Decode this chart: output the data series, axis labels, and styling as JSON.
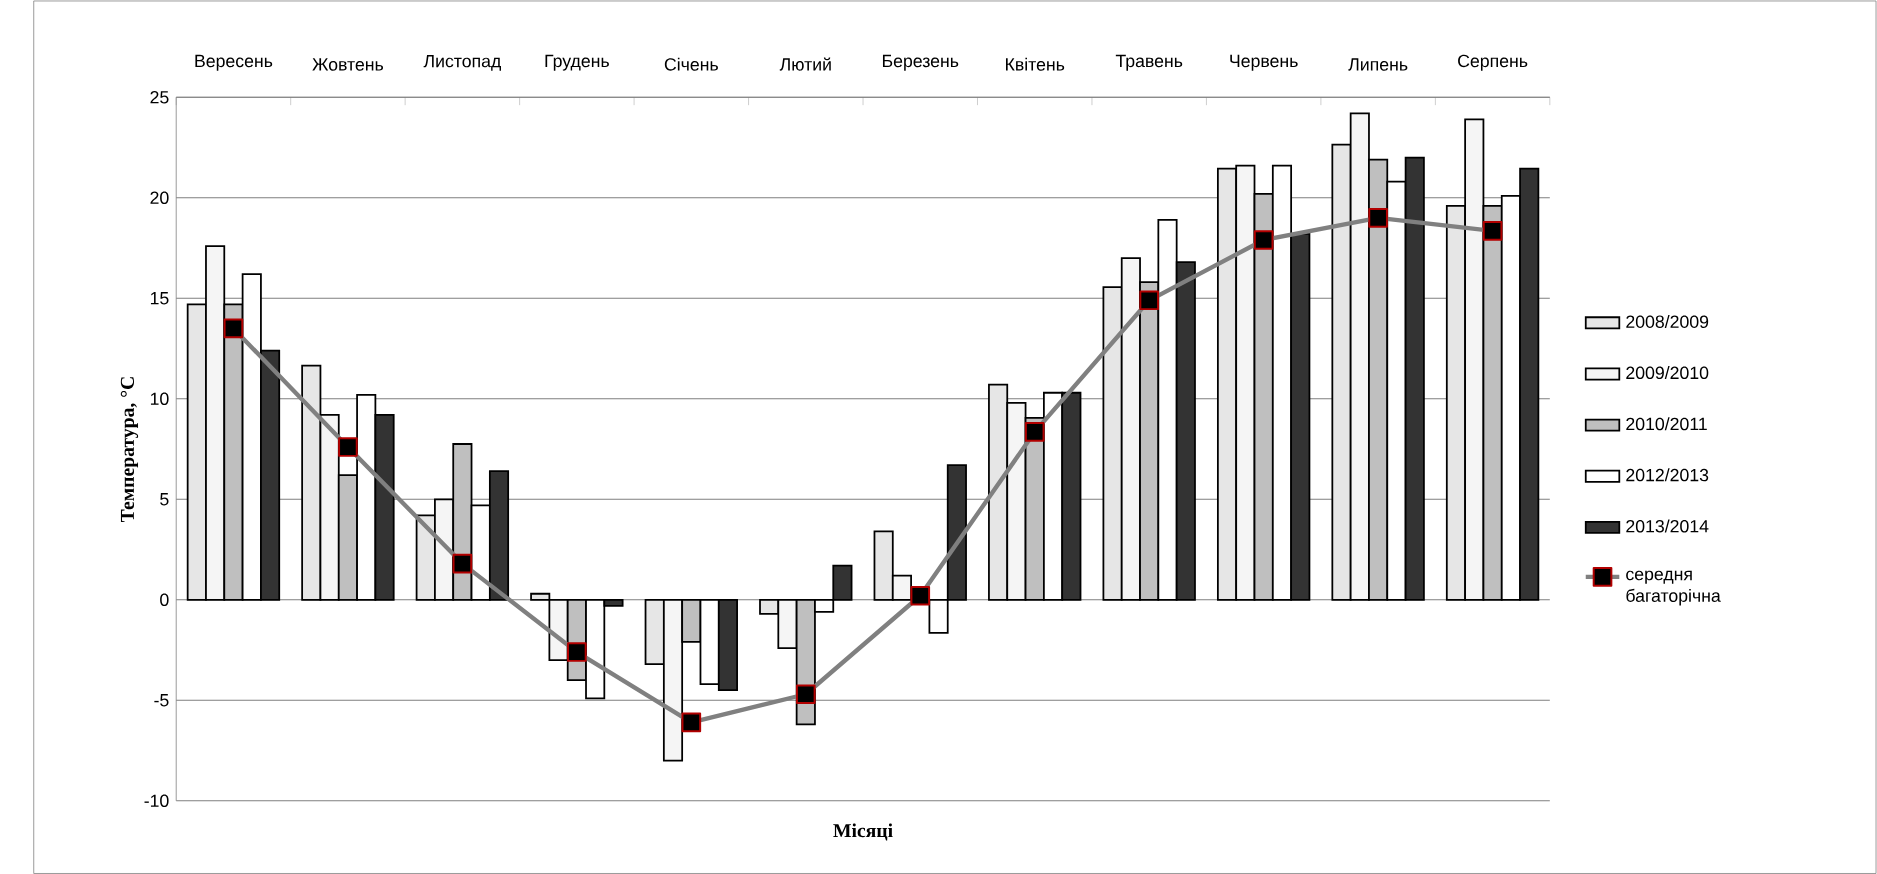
{
  "chart_data": {
    "type": "bar",
    "xlabel": "Місяці",
    "ylabel": "Температура, °C",
    "categories": [
      "Вересень",
      "Жовтень",
      "Листопад",
      "Грудень",
      "Січень",
      "Лютий",
      "Березень",
      "Квітень",
      "Травень",
      "Червень",
      "Липень",
      "Серпень"
    ],
    "ylim": [
      -10,
      25
    ],
    "yticks": [
      -10,
      -5,
      0,
      5,
      10,
      15,
      20,
      25
    ],
    "grid": "y",
    "legend": "right",
    "series": [
      {
        "name": "2008/2009",
        "color": "#e6e6e6",
        "values": [
          14.7,
          11.65,
          4.2,
          0.3,
          -3.2,
          -0.7,
          3.4,
          10.7,
          15.55,
          21.45,
          22.65,
          19.6
        ]
      },
      {
        "name": "2009/2010",
        "color": "#f5f5f5",
        "values": [
          17.6,
          9.2,
          5.0,
          -3.0,
          -8.0,
          -2.4,
          1.2,
          9.8,
          17.0,
          21.6,
          24.2,
          23.9
        ]
      },
      {
        "name": "2010/2011",
        "color": "#bfbfbf",
        "values": [
          14.7,
          6.2,
          7.75,
          -4.0,
          -2.1,
          -6.2,
          null,
          9.05,
          15.8,
          20.2,
          21.9,
          19.6
        ]
      },
      {
        "name": "2012/2013",
        "color": "#ffffff",
        "values": [
          16.2,
          10.2,
          4.7,
          -4.9,
          -4.2,
          -0.6,
          -1.65,
          10.3,
          18.9,
          21.6,
          20.8,
          20.1
        ]
      },
      {
        "name": "2013/2014",
        "color": "#333333",
        "values": [
          12.4,
          9.2,
          6.4,
          -0.3,
          -4.5,
          1.7,
          6.7,
          10.3,
          16.8,
          18.2,
          22.0,
          21.45
        ]
      },
      {
        "name": "середня багаторічна",
        "type": "line",
        "color": "#808080",
        "marker": "square",
        "values": [
          13.5,
          7.6,
          1.8,
          -2.6,
          -6.1,
          -4.7,
          0.2,
          8.35,
          14.9,
          17.9,
          19.0,
          18.35
        ]
      }
    ]
  }
}
